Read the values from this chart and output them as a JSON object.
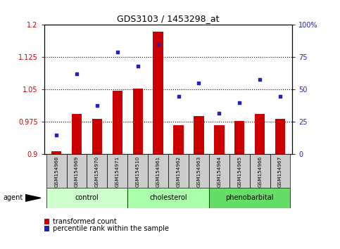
{
  "title": "GDS3103 / 1453298_at",
  "samples": [
    "GSM154968",
    "GSM154969",
    "GSM154970",
    "GSM154971",
    "GSM154510",
    "GSM154961",
    "GSM154962",
    "GSM154963",
    "GSM154964",
    "GSM154965",
    "GSM154966",
    "GSM154967"
  ],
  "bar_values": [
    0.907,
    0.993,
    0.983,
    1.048,
    1.052,
    1.185,
    0.968,
    0.988,
    0.968,
    0.978,
    0.993,
    0.983
  ],
  "scatter_values": [
    15,
    62,
    38,
    79,
    68,
    85,
    45,
    55,
    32,
    40,
    58,
    45
  ],
  "bar_color": "#cc0000",
  "scatter_color": "#2222bb",
  "ylim_left": [
    0.9,
    1.2
  ],
  "ylim_right": [
    0,
    100
  ],
  "yticks_left": [
    0.9,
    0.975,
    1.05,
    1.125,
    1.2
  ],
  "yticks_right": [
    0,
    25,
    50,
    75,
    100
  ],
  "ytick_labels_left": [
    "0.9",
    "0.975",
    "1.05",
    "1.125",
    "1.2"
  ],
  "ytick_labels_right": [
    "0",
    "25",
    "50",
    "75",
    "100%"
  ],
  "hlines": [
    0.975,
    1.05,
    1.125
  ],
  "groups": [
    {
      "label": "control",
      "start": 0,
      "end": 3
    },
    {
      "label": "cholesterol",
      "start": 4,
      "end": 7
    },
    {
      "label": "phenobarbital",
      "start": 8,
      "end": 11
    }
  ],
  "group_colors": [
    "#ccffcc",
    "#aaffaa",
    "#66dd66"
  ],
  "agent_label": "agent",
  "legend_bar_label": "transformed count",
  "legend_scatter_label": "percentile rank within the sample",
  "bar_base": 0.9,
  "tick_label_color_left": "#cc0000",
  "tick_label_color_right": "#2222bb",
  "sample_box_color": "#cccccc",
  "bar_width": 0.5
}
